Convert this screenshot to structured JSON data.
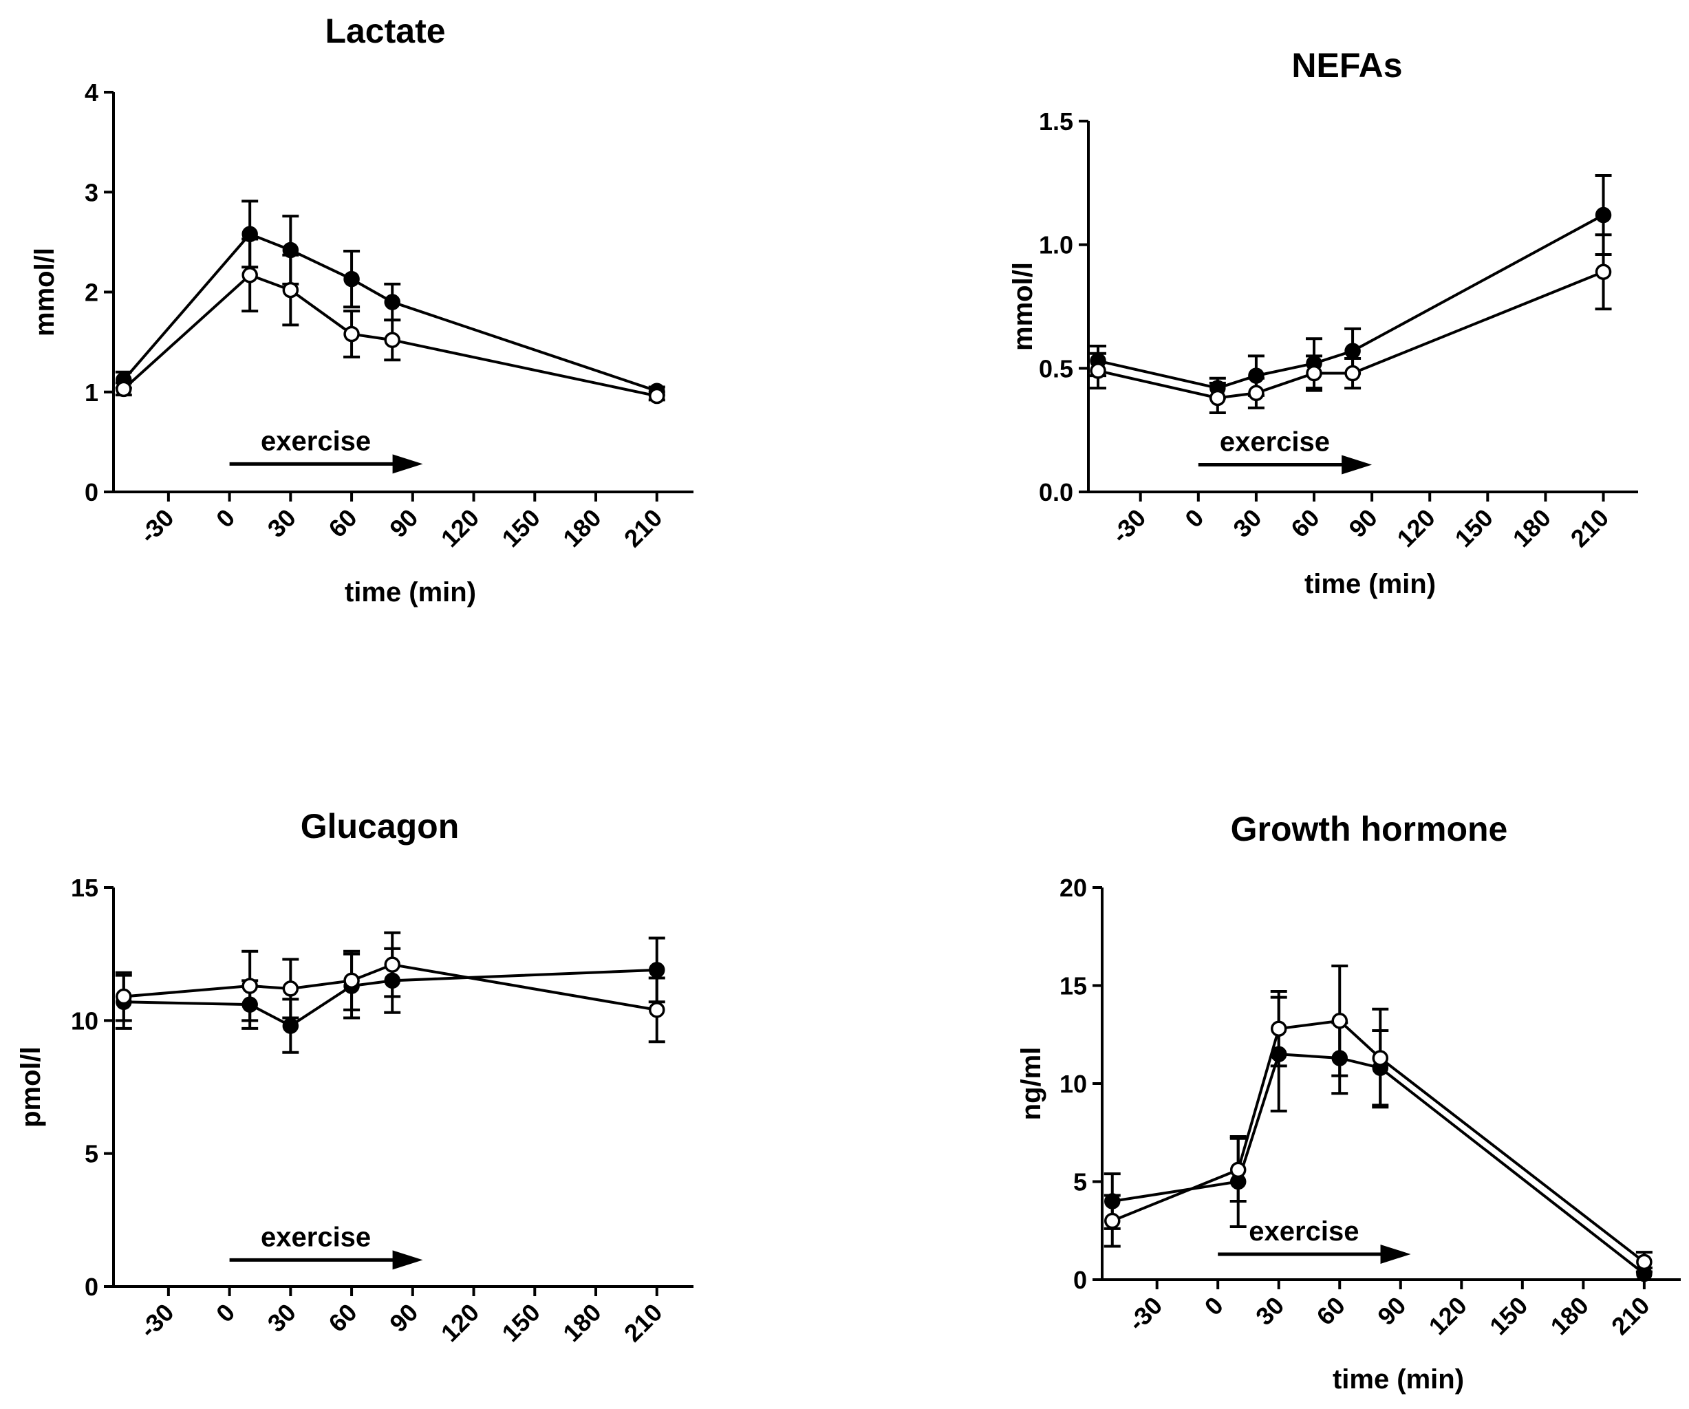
{
  "chart_data": [
    {
      "type": "line",
      "title": "Lactate",
      "xlabel": "time (min)",
      "ylabel": "mmol/l",
      "x_ticks": [
        -30,
        0,
        30,
        60,
        90,
        120,
        150,
        180,
        210
      ],
      "x_tick_labels": [
        "-30",
        "0",
        "30",
        "60",
        "90",
        "120",
        "150",
        "180",
        "210"
      ],
      "xlim": [
        -57,
        228
      ],
      "ylim": [
        0,
        4
      ],
      "y_ticks": [
        0,
        1,
        2,
        3,
        4
      ],
      "y_tick_labels": [
        "0",
        "1",
        "2",
        "3",
        "4"
      ],
      "annotation": {
        "text": "exercise",
        "x_start": 0,
        "x_end": 95,
        "y": 0.28
      },
      "series": [
        {
          "name": "filled",
          "marker": "filled-circle",
          "x": [
            -52,
            10,
            30,
            60,
            80,
            210
          ],
          "y": [
            1.12,
            2.58,
            2.42,
            2.13,
            1.9,
            1.01
          ],
          "err": [
            0.08,
            0.33,
            0.34,
            0.28,
            0.18,
            0.04
          ]
        },
        {
          "name": "open",
          "marker": "open-circle",
          "x": [
            -52,
            10,
            30,
            60,
            80,
            210
          ],
          "y": [
            1.03,
            2.17,
            2.02,
            1.58,
            1.52,
            0.96
          ],
          "err": [
            0.06,
            0.36,
            0.35,
            0.23,
            0.2,
            0.04
          ]
        }
      ]
    },
    {
      "type": "line",
      "title": "NEFAs",
      "xlabel": "time (min)",
      "ylabel": "mmol/l",
      "x_ticks": [
        -30,
        0,
        30,
        60,
        90,
        120,
        150,
        180,
        210
      ],
      "x_tick_labels": [
        "-30",
        "0",
        "30",
        "60",
        "90",
        "120",
        "150",
        "180",
        "210"
      ],
      "xlim": [
        -57,
        228
      ],
      "ylim": [
        0,
        1.5
      ],
      "y_ticks": [
        0,
        0.5,
        1.0,
        1.5
      ],
      "y_tick_labels": [
        "0.0",
        "0.5",
        "1.0",
        "1.5"
      ],
      "annotation": {
        "text": "exercise",
        "x_start": 0,
        "x_end": 90,
        "y": 0.11
      },
      "series": [
        {
          "name": "filled",
          "marker": "filled-circle",
          "x": [
            -52,
            10,
            30,
            60,
            80,
            210
          ],
          "y": [
            0.53,
            0.42,
            0.47,
            0.52,
            0.57,
            1.12
          ],
          "err": [
            0.06,
            0.04,
            0.08,
            0.1,
            0.09,
            0.16
          ]
        },
        {
          "name": "open",
          "marker": "open-circle",
          "x": [
            -52,
            10,
            30,
            60,
            80,
            210
          ],
          "y": [
            0.49,
            0.38,
            0.4,
            0.48,
            0.48,
            0.89
          ],
          "err": [
            0.07,
            0.06,
            0.06,
            0.07,
            0.06,
            0.15
          ]
        }
      ]
    },
    {
      "type": "line",
      "title": "Glucagon",
      "xlabel": "",
      "ylabel": "pmol/l",
      "x_ticks": [
        -30,
        0,
        30,
        60,
        90,
        120,
        150,
        180,
        210
      ],
      "x_tick_labels": [
        "-30",
        "0",
        "30",
        "60",
        "90",
        "120",
        "150",
        "180",
        "210"
      ],
      "xlim": [
        -57,
        228
      ],
      "ylim": [
        0,
        15
      ],
      "y_ticks": [
        0,
        5,
        10,
        15
      ],
      "y_tick_labels": [
        "0",
        "5",
        "10",
        "15"
      ],
      "annotation": {
        "text": "exercise",
        "x_start": 0,
        "x_end": 95,
        "y": 1.0
      },
      "series": [
        {
          "name": "filled",
          "marker": "filled-circle",
          "x": [
            -52,
            10,
            30,
            60,
            80,
            210
          ],
          "y": [
            10.7,
            10.6,
            9.8,
            11.3,
            11.5,
            11.9
          ],
          "err": [
            1.0,
            0.9,
            1.0,
            1.2,
            1.2,
            1.2
          ]
        },
        {
          "name": "open",
          "marker": "open-circle",
          "x": [
            -52,
            10,
            30,
            60,
            80,
            210
          ],
          "y": [
            10.9,
            11.3,
            11.2,
            11.5,
            12.1,
            10.4
          ],
          "err": [
            0.9,
            1.3,
            1.1,
            1.1,
            1.2,
            1.2
          ]
        }
      ]
    },
    {
      "type": "line",
      "title": "Growth hormone",
      "xlabel": "time (min)",
      "ylabel": "ng/ml",
      "x_ticks": [
        -30,
        0,
        30,
        60,
        90,
        120,
        150,
        180,
        210
      ],
      "x_tick_labels": [
        "-30",
        "0",
        "30",
        "60",
        "90",
        "120",
        "150",
        "180",
        "210"
      ],
      "xlim": [
        -57,
        228
      ],
      "ylim": [
        0,
        20
      ],
      "y_ticks": [
        0,
        5,
        10,
        15,
        20
      ],
      "y_tick_labels": [
        "0",
        "5",
        "10",
        "15",
        "20"
      ],
      "annotation": {
        "text": "exercise",
        "x_start": 0,
        "x_end": 95,
        "y": 1.3
      },
      "series": [
        {
          "name": "filled",
          "marker": "filled-circle",
          "x": [
            -52,
            10,
            30,
            60,
            80,
            210
          ],
          "y": [
            4.0,
            5.0,
            11.5,
            11.3,
            10.8,
            0.3
          ],
          "err": [
            1.4,
            2.3,
            2.9,
            1.8,
            1.9,
            0.3
          ]
        },
        {
          "name": "open",
          "marker": "open-circle",
          "x": [
            -52,
            10,
            30,
            60,
            80,
            210
          ],
          "y": [
            3.0,
            5.6,
            12.8,
            13.2,
            11.3,
            0.9
          ],
          "err": [
            1.3,
            1.6,
            1.9,
            2.8,
            2.5,
            0.5
          ]
        }
      ]
    }
  ]
}
